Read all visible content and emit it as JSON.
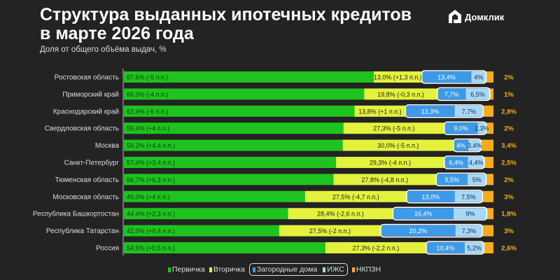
{
  "header": {
    "title": "Структура выданных ипотечных кредитов\nв марте 2026 года",
    "subtitle": "Доля от общего объёма выдач, %",
    "logo_text": "Домклик"
  },
  "colors": {
    "primary": "#1fc31f",
    "secondary": "#e4f23d",
    "country": "#3d9ae8",
    "izhs": "#a8d8f8",
    "nkpzn": "#f5ad1c",
    "background": "#232323"
  },
  "chart_data": {
    "type": "bar",
    "orientation": "horizontal",
    "stacked": true,
    "title": "Структура выданных ипотечных кредитов в марте 2026 года",
    "subtitle": "Доля от общего объёма выдач, %",
    "legend_position": "bottom",
    "categories": [
      "Ростовская область",
      "Приморский край",
      "Краснодарский край",
      "Свердловская область",
      "Москва",
      "Санкт-Петербург",
      "Тюменская область",
      "Московская область",
      "Республика Башкортостан",
      "Республика Татарстан",
      "Россия"
    ],
    "series": [
      {
        "name": "Первичка",
        "values": [
          67.6,
          65.0,
          62.4,
          59.4,
          59.2,
          57.4,
          56.7,
          49.0,
          44.4,
          42.0,
          54.5
        ],
        "labels": [
          "67,6% (-5 п.п.)",
          "65,0% (-4 п.п.)",
          "62,4% (-6 п.п.)",
          "59,4% (+4 п.п.)",
          "59,2% (+4,4 п.п.)",
          "57,4% (+3,4 п.п.)",
          "56,7% (+6,3 п.п.)",
          "49,0% (+4 п.п.)",
          "44,4% (+2,3 п.п.)",
          "42,0% (+0,4 п.п.)",
          "54,5% (+0,5 п.п.)"
        ]
      },
      {
        "name": "Вторичка",
        "values": [
          13.0,
          19.8,
          13.8,
          27.3,
          30.0,
          29.3,
          27.8,
          27.5,
          28.4,
          27.5,
          27.3
        ],
        "labels": [
          "13,0% (+1,3 п.п.)",
          "19,8% (-0,3 п.п.)",
          "13,8% (+1 п.п.)",
          "27,3% (-5 п.п.)",
          "30,0% (-5 п.п.)",
          "29,3% (-4 п.п.)",
          "27,8% (-4,8 п.п.)",
          "27,5% (-4,7 п.п.)",
          "28,4% (-2,6 п.п.)",
          "27,5% (-2 п.п.)",
          "27,3% (-2,2 п.п.)"
        ]
      },
      {
        "name": "Загородные дома",
        "values": [
          13.4,
          7.7,
          13.3,
          9.0,
          4,
          6.4,
          8.5,
          13.0,
          16.4,
          20.2,
          10.4
        ],
        "labels": [
          "13,4%",
          "7,7%",
          "13,3%",
          "9,0%",
          "4%",
          "6,4%",
          "8,5%",
          "13,0%",
          "16,4%",
          "20,2%",
          "10,4%"
        ]
      },
      {
        "name": "ИЖС",
        "values": [
          4,
          6.5,
          7.7,
          2.3,
          3.4,
          4.4,
          5,
          7.5,
          9,
          7.3,
          5.2
        ],
        "labels": [
          "4%",
          "6,5%",
          "7,7%",
          "2,3%",
          "3,4%",
          "4,4%",
          "5%",
          "7,5%",
          "9%",
          "7,3%",
          "5,2%"
        ]
      },
      {
        "name": "НКПЗН",
        "values": [
          2,
          1,
          2.8,
          2,
          3.4,
          2.5,
          2,
          3,
          1.8,
          3,
          2.6
        ],
        "labels": [
          "2%",
          "1%",
          "2,8%",
          "2%",
          "3,4%",
          "2,5%",
          "2%",
          "3%",
          "1,8%",
          "3%",
          "2,6%"
        ]
      }
    ]
  }
}
